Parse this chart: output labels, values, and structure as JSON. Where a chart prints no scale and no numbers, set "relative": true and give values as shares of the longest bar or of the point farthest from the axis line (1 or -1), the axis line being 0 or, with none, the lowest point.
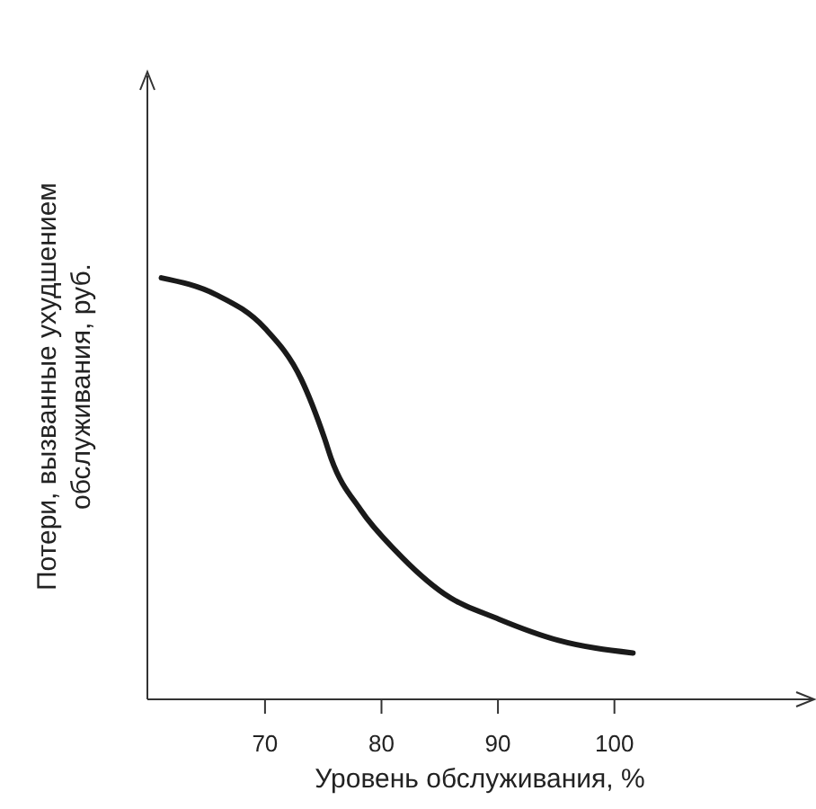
{
  "chart_data": {
    "type": "line",
    "relative": true,
    "xlabel": "Уровень обслуживания, %",
    "ylabel": "Потери, вызванные ухудшением обслуживания, руб.",
    "x": [
      61.1,
      65.8,
      70,
      73.1,
      75.1,
      75.7,
      78.2,
      81.3,
      85.4,
      90.1,
      95.2,
      101.6
    ],
    "series": [
      {
        "color": "#1a1a1a",
        "values": [
          1,
          0.96,
          0.88,
          0.76,
          0.62,
          0.57,
          0.45,
          0.35,
          0.25,
          0.19,
          0.14,
          0.11
        ]
      }
    ],
    "xlim": [
      59.9,
      117
    ],
    "xticks": [
      70,
      80,
      90,
      100
    ],
    "grid": false,
    "legend": false,
    "marker": "none",
    "line_style": "solid"
  }
}
